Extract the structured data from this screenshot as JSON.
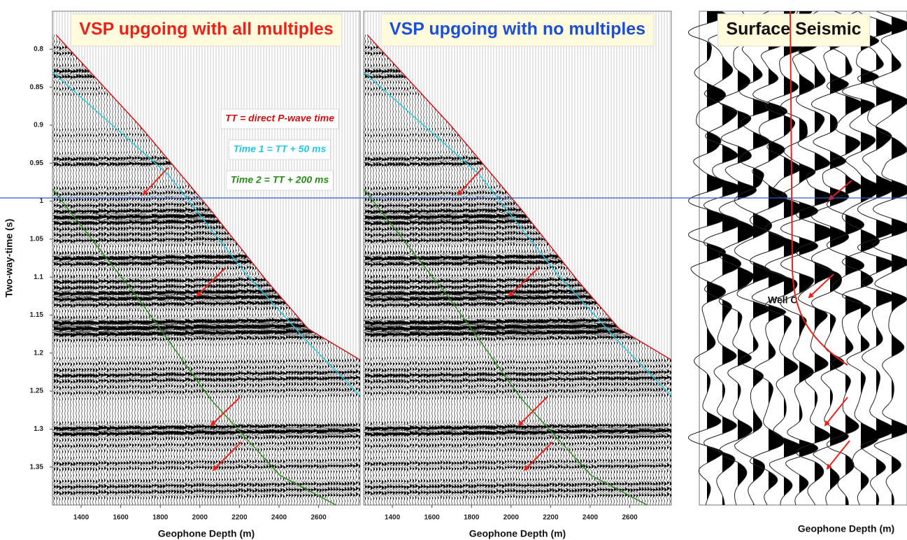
{
  "chart_data": [
    {
      "type": "seismic",
      "title": "VSP upgoing with all multiples",
      "title_color": "#e8231b",
      "xlabel": "Geophone Depth (m)",
      "ylabel": "Two-way-time (s)",
      "xlim": [
        1255,
        2810
      ],
      "ylim": [
        0.75,
        1.4
      ],
      "xticks": [
        1400,
        1600,
        1800,
        2000,
        2200,
        2400,
        2600
      ],
      "yticks": [
        0.8,
        0.85,
        0.9,
        0.95,
        1,
        1.05,
        1.1,
        1.15,
        1.2,
        1.25,
        1.3,
        1.35
      ],
      "series": [
        {
          "name": "TT = direct P-wave time",
          "color": "#d01010",
          "x": [
            1273,
            1697,
            2052,
            2335,
            2547,
            2810
          ],
          "values": [
            0.781,
            0.901,
            1.011,
            1.104,
            1.168,
            1.209
          ]
        },
        {
          "name": "Time 1 = TT + 50 ms",
          "color": "#22c8e0",
          "x": [
            1255,
            1839,
            2228,
            2547,
            2810
          ],
          "values": [
            0.83,
            0.965,
            1.094,
            1.186,
            1.256
          ]
        },
        {
          "name": "Time 2 = TT + 200 ms",
          "color": "#2a8a1a",
          "x": [
            1255,
            1697,
            2052,
            2405,
            2688
          ],
          "values": [
            0.984,
            1.131,
            1.26,
            1.361,
            1.4
          ]
        }
      ]
    },
    {
      "type": "seismic",
      "title": "VSP upgoing with no multiples",
      "title_color": "#1a4fd6",
      "xlabel": "Geophone Depth (m)",
      "xlim": [
        1255,
        2810
      ],
      "ylim": [
        0.75,
        1.4
      ],
      "xticks": [
        1400,
        1600,
        1800,
        2000,
        2200,
        2400,
        2600
      ],
      "series": [
        {
          "color": "#d01010",
          "x": [
            1273,
            1697,
            2052,
            2335,
            2547,
            2810
          ],
          "values": [
            0.781,
            0.901,
            1.011,
            1.104,
            1.168,
            1.209
          ]
        },
        {
          "color": "#22c8e0",
          "x": [
            1255,
            1839,
            2228,
            2547,
            2810
          ],
          "values": [
            0.83,
            0.965,
            1.094,
            1.186,
            1.256
          ]
        },
        {
          "color": "#2a8a1a",
          "x": [
            1255,
            1697,
            2052,
            2405,
            2688
          ],
          "values": [
            0.984,
            1.131,
            1.26,
            1.361,
            1.4
          ]
        }
      ]
    },
    {
      "type": "seismic",
      "title": "Surface Seismic",
      "title_color": "#111111",
      "xlabel": "Geophone Depth (m)",
      "annotation": "Well C"
    }
  ]
}
